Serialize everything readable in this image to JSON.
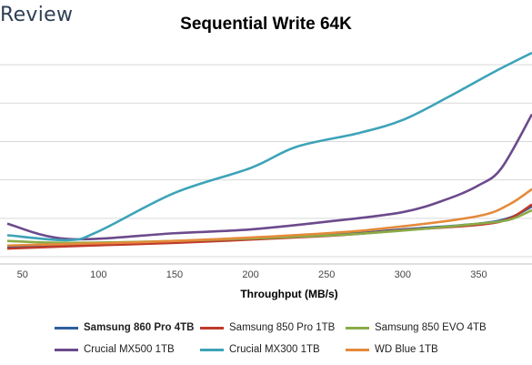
{
  "header": {
    "brand": "Review"
  },
  "chart_data": {
    "type": "line",
    "title": "Sequential Write 64K",
    "xlabel": "Throughput (MB/s)",
    "ylabel": "",
    "xlim": [
      40,
      385
    ],
    "ylim": [
      0,
      5.5
    ],
    "xticks": [
      50,
      100,
      150,
      200,
      250,
      300,
      350
    ],
    "grid": true,
    "legend_position": "bottom",
    "series": [
      {
        "name": "Samsung 860 Pro 4TB",
        "color": "#2e5f9e",
        "x": [
          40,
          80,
          150,
          250,
          300,
          350,
          370,
          385
        ],
        "y": [
          0.45,
          0.5,
          0.58,
          0.75,
          0.9,
          1.05,
          1.2,
          1.5
        ]
      },
      {
        "name": "Samsung 850 Pro 1TB",
        "color": "#c0392b",
        "x": [
          40,
          80,
          150,
          250,
          300,
          350,
          370,
          385
        ],
        "y": [
          0.4,
          0.46,
          0.55,
          0.73,
          0.88,
          1.02,
          1.18,
          1.55
        ]
      },
      {
        "name": "Samsung 850 EVO 4TB",
        "color": "#8aac47",
        "x": [
          40,
          80,
          150,
          250,
          300,
          350,
          370,
          385
        ],
        "y": [
          0.6,
          0.55,
          0.6,
          0.74,
          0.87,
          1.05,
          1.15,
          1.4
        ]
      },
      {
        "name": "Crucial MX500 1TB",
        "color": "#6c4a8c",
        "x": [
          40,
          80,
          150,
          200,
          250,
          300,
          330,
          350,
          365,
          385
        ],
        "y": [
          1.05,
          0.65,
          0.8,
          0.9,
          1.1,
          1.35,
          1.7,
          2.05,
          2.5,
          3.9
        ]
      },
      {
        "name": "Crucial MX300 1TB",
        "color": "#3da3b8",
        "x": [
          40,
          80,
          100,
          150,
          200,
          230,
          270,
          300,
          330,
          360,
          385
        ],
        "y": [
          0.75,
          0.62,
          0.85,
          1.85,
          2.5,
          3.05,
          3.4,
          3.75,
          4.35,
          5.0,
          5.5
        ]
      },
      {
        "name": "WD Blue 1TB",
        "color": "#e58a3a",
        "x": [
          40,
          80,
          150,
          250,
          300,
          350,
          370,
          385
        ],
        "y": [
          0.48,
          0.52,
          0.6,
          0.8,
          0.98,
          1.25,
          1.55,
          1.95
        ]
      }
    ]
  }
}
